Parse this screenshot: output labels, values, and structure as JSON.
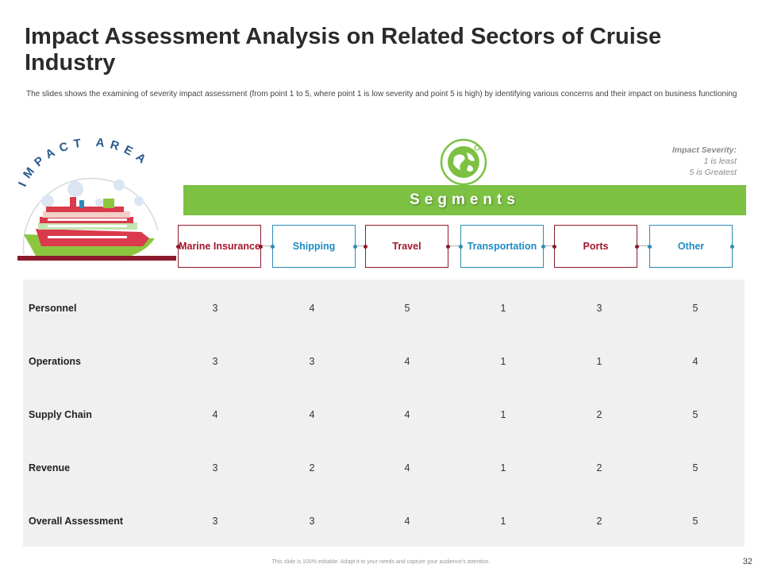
{
  "slide": {
    "title": "Impact Assessment Analysis on Related Sectors of Cruise Industry",
    "subtitle": "The slides shows the examining of severity impact assessment (from point 1 to 5, where point 1 is low severity and point 5 is high) by identifying various concerns and their impact on business functioning",
    "impact_area_label": "IMPACT AREA",
    "severity": {
      "title": "Impact Severity:",
      "line1": "1 is least",
      "line2": "5 is Greatest"
    },
    "segments_label": "Segments",
    "segments": [
      "Marine Insurance",
      "Shipping",
      "Travel",
      "Transportation",
      "Ports",
      "Other"
    ],
    "rows": [
      {
        "label": "Personnel",
        "values": [
          "3",
          "4",
          "5",
          "1",
          "3",
          "5"
        ]
      },
      {
        "label": "Operations",
        "values": [
          "3",
          "3",
          "4",
          "1",
          "1",
          "4"
        ]
      },
      {
        "label": "Supply Chain",
        "values": [
          "4",
          "4",
          "4",
          "1",
          "2",
          "5"
        ]
      },
      {
        "label": "Revenue",
        "values": [
          "3",
          "2",
          "4",
          "1",
          "2",
          "5"
        ]
      },
      {
        "label": "Overall Assessment",
        "values": [
          "3",
          "3",
          "4",
          "1",
          "2",
          "5"
        ]
      }
    ],
    "footer": "This slide is 100% editable. Adapt it to your needs and capture your audience's attention.",
    "page_number": "32"
  },
  "colors": {
    "green": "#7cc142",
    "red": "#a3162c",
    "blue": "#1e8bc3",
    "table_bg": "#f0f0f0"
  }
}
